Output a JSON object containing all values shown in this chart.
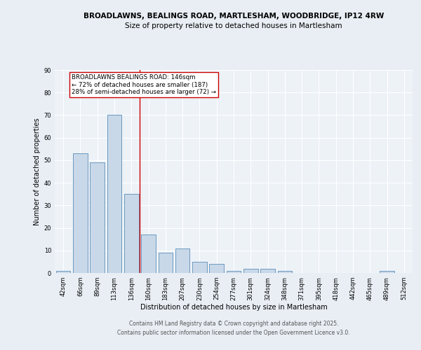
{
  "title_line1": "BROADLAWNS, BEALINGS ROAD, MARTLESHAM, WOODBRIDGE, IP12 4RW",
  "title_line2": "Size of property relative to detached houses in Martlesham",
  "xlabel": "Distribution of detached houses by size in Martlesham",
  "ylabel": "Number of detached properties",
  "categories": [
    "42sqm",
    "66sqm",
    "89sqm",
    "113sqm",
    "136sqm",
    "160sqm",
    "183sqm",
    "207sqm",
    "230sqm",
    "254sqm",
    "277sqm",
    "301sqm",
    "324sqm",
    "348sqm",
    "371sqm",
    "395sqm",
    "418sqm",
    "442sqm",
    "465sqm",
    "489sqm",
    "512sqm"
  ],
  "values": [
    1,
    53,
    49,
    70,
    35,
    17,
    9,
    11,
    5,
    4,
    1,
    2,
    2,
    1,
    0,
    0,
    0,
    0,
    0,
    1,
    0
  ],
  "bar_color": "#c8d8e8",
  "bar_edge_color": "#5b8db8",
  "ylim": [
    0,
    90
  ],
  "yticks": [
    0,
    10,
    20,
    30,
    40,
    50,
    60,
    70,
    80,
    90
  ],
  "vline_color": "#cc0000",
  "annotation_text": "BROADLAWNS BEALINGS ROAD: 146sqm\n← 72% of detached houses are smaller (187)\n28% of semi-detached houses are larger (72) →",
  "annotation_box_color": "#ffffff",
  "annotation_box_edge_color": "#cc0000",
  "footer_line1": "Contains HM Land Registry data © Crown copyright and database right 2025.",
  "footer_line2": "Contains public sector information licensed under the Open Government Licence v3.0.",
  "bg_color": "#e8eef4",
  "plot_bg_color": "#edf2f7",
  "grid_color": "#ffffff",
  "title_fontsize": 7.5,
  "subtitle_fontsize": 7.5,
  "axis_label_fontsize": 7.0,
  "tick_fontsize": 6.0,
  "annotation_fontsize": 6.2,
  "footer_fontsize": 5.5
}
